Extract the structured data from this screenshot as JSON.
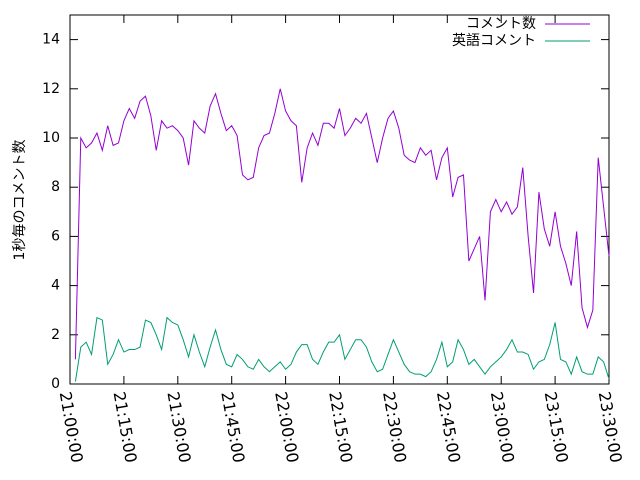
{
  "chart_data": {
    "type": "line",
    "ylabel": "1秒毎のコメント数",
    "x": [
      "21:01:30",
      "21:03:00",
      "21:04:30",
      "21:06:00",
      "21:07:30",
      "21:09:00",
      "21:10:30",
      "21:12:00",
      "21:13:30",
      "21:15:00",
      "21:16:30",
      "21:18:00",
      "21:19:30",
      "21:21:00",
      "21:22:30",
      "21:24:00",
      "21:25:30",
      "21:27:00",
      "21:28:30",
      "21:30:00",
      "21:31:30",
      "21:33:00",
      "21:34:30",
      "21:36:00",
      "21:37:30",
      "21:39:00",
      "21:40:30",
      "21:42:00",
      "21:43:30",
      "21:45:00",
      "21:46:30",
      "21:48:00",
      "21:49:30",
      "21:51:00",
      "21:52:30",
      "21:54:00",
      "21:55:30",
      "21:57:00",
      "21:58:30",
      "22:00:00",
      "22:01:30",
      "22:03:00",
      "22:04:30",
      "22:06:00",
      "22:07:30",
      "22:09:00",
      "22:10:30",
      "22:12:00",
      "22:13:30",
      "22:15:00",
      "22:16:30",
      "22:18:00",
      "22:19:30",
      "22:21:00",
      "22:22:30",
      "22:24:00",
      "22:25:30",
      "22:27:00",
      "22:28:30",
      "22:30:00",
      "22:31:30",
      "22:33:00",
      "22:34:30",
      "22:36:00",
      "22:37:30",
      "22:39:00",
      "22:40:30",
      "22:42:00",
      "22:43:30",
      "22:45:00",
      "22:46:30",
      "22:48:00",
      "22:49:30",
      "22:51:00",
      "22:52:30",
      "22:54:00",
      "22:55:30",
      "22:57:00",
      "22:58:30",
      "23:00:00",
      "23:01:30",
      "23:03:00",
      "23:04:30",
      "23:06:00",
      "23:07:30",
      "23:09:00",
      "23:10:30",
      "23:12:00",
      "23:13:30",
      "23:15:00",
      "23:16:30",
      "23:18:00",
      "23:19:30",
      "23:21:00",
      "23:22:30",
      "23:24:00",
      "23:25:30",
      "23:27:00",
      "23:28:30",
      "23:30:00"
    ],
    "series": [
      {
        "name": "コメント数",
        "color": "#9400d3",
        "values": [
          1.0,
          10.0,
          9.6,
          9.8,
          10.2,
          9.5,
          10.5,
          9.7,
          9.8,
          10.7,
          11.2,
          10.8,
          11.5,
          11.7,
          10.9,
          9.5,
          10.7,
          10.4,
          10.5,
          10.3,
          10.0,
          8.9,
          10.7,
          10.4,
          10.2,
          11.3,
          11.8,
          11.0,
          10.3,
          10.5,
          10.1,
          8.5,
          8.3,
          8.4,
          9.6,
          10.1,
          10.2,
          11.0,
          12.0,
          11.1,
          10.7,
          10.5,
          8.2,
          9.6,
          10.2,
          9.7,
          10.6,
          10.6,
          10.4,
          11.2,
          10.1,
          10.4,
          10.8,
          10.6,
          11.0,
          10.0,
          9.0,
          10.0,
          10.8,
          11.1,
          10.4,
          9.3,
          9.1,
          9.0,
          9.6,
          9.3,
          9.5,
          8.3,
          9.2,
          9.6,
          7.6,
          8.4,
          8.5,
          5.0,
          5.5,
          6.0,
          3.4,
          7.0,
          7.5,
          7.0,
          7.4,
          6.9,
          7.2,
          8.8,
          6.0,
          3.7,
          7.8,
          6.3,
          5.6,
          7.0,
          5.6,
          4.9,
          4.0,
          6.2,
          3.1,
          2.3,
          3.0,
          9.2,
          7.2,
          5.2
        ]
      },
      {
        "name": "英語コメント",
        "color": "#009e73",
        "values": [
          0.1,
          1.5,
          1.7,
          1.2,
          2.7,
          2.6,
          0.8,
          1.2,
          1.8,
          1.3,
          1.4,
          1.4,
          1.5,
          2.6,
          2.5,
          2.0,
          1.4,
          2.7,
          2.5,
          2.4,
          1.8,
          1.1,
          2.0,
          1.3,
          0.7,
          1.5,
          2.2,
          1.4,
          0.8,
          0.7,
          1.2,
          1.0,
          0.7,
          0.6,
          1.0,
          0.7,
          0.5,
          0.7,
          0.9,
          0.6,
          0.8,
          1.3,
          1.6,
          1.6,
          1.0,
          0.8,
          1.3,
          1.7,
          1.7,
          2.0,
          1.0,
          1.4,
          1.8,
          1.8,
          1.5,
          0.9,
          0.5,
          0.6,
          1.2,
          1.8,
          1.3,
          0.8,
          0.5,
          0.4,
          0.4,
          0.3,
          0.5,
          1.0,
          1.7,
          0.7,
          0.9,
          1.8,
          1.4,
          0.8,
          1.0,
          0.7,
          0.4,
          0.7,
          0.9,
          1.1,
          1.4,
          1.8,
          1.3,
          1.3,
          1.2,
          0.6,
          0.9,
          1.0,
          1.6,
          2.5,
          1.0,
          0.9,
          0.4,
          1.1,
          0.5,
          0.4,
          0.4,
          1.1,
          0.9,
          0.2
        ]
      }
    ],
    "xlim": [
      "21:00:00",
      "23:30:00"
    ],
    "xticks": [
      "21:00:00",
      "21:15:00",
      "21:30:00",
      "21:45:00",
      "22:00:00",
      "22:15:00",
      "22:30:00",
      "22:45:00",
      "23:00:00",
      "23:15:00",
      "23:30:00"
    ],
    "ylim": [
      0,
      15
    ],
    "yticks": [
      0,
      2,
      4,
      6,
      8,
      10,
      12,
      14
    ],
    "legend": "upper right"
  }
}
